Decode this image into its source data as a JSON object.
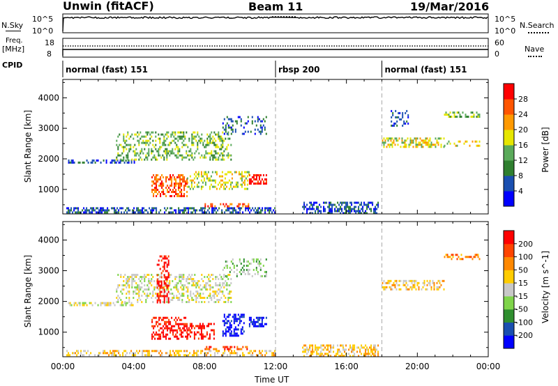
{
  "header": {
    "title": "Unwin (fitACF)",
    "beam": "Beam 11",
    "date": "19/Mar/2016"
  },
  "strip": {
    "nsky_label": "N.Sky",
    "nsky_top": "10^5",
    "nsky_bottom": "10^0",
    "nsearch_label": "N.Search",
    "freq_label": "Freq.",
    "freq_unit": "[MHz]",
    "freq_18": "18",
    "freq_8": "8",
    "nave_label": "Nave",
    "nave_60": "60",
    "nave_0": "0",
    "cpid_label": "CPID"
  },
  "cpid_segments": [
    {
      "label": "normal (fast) 151",
      "start_hour": 0
    },
    {
      "label": "rbsp 200",
      "start_hour": 12
    },
    {
      "label": "normal (fast) 151",
      "start_hour": 18
    }
  ],
  "chart_data": [
    {
      "type": "heatmap",
      "panel": "power",
      "xlabel": "Time UT",
      "ylabel": "Slant Range [km]",
      "x_ticks": [
        "00:00",
        "04:00",
        "08:00",
        "12:00",
        "16:00",
        "20:00",
        "00:00"
      ],
      "xlim_hours": [
        0,
        24
      ],
      "ylim": [
        200,
        4600
      ],
      "y_ticks": [
        1000,
        2000,
        3000,
        4000
      ],
      "colorbar": {
        "label": "Power [dB]",
        "ticks": [
          "4",
          "8",
          "12",
          "16",
          "20",
          "24",
          "28"
        ],
        "colors": [
          "#0000ff",
          "#1a4fb0",
          "#2f7f2f",
          "#5aaa5a",
          "#e6e600",
          "#ff9900",
          "#ff5500",
          "#ff0000"
        ]
      },
      "regions": [
        {
          "t0": 0.2,
          "t1": 12.0,
          "r0": 250,
          "r1": 420,
          "level": 1,
          "density": 0.55
        },
        {
          "t0": 0.3,
          "t1": 4.0,
          "r0": 1850,
          "r1": 1980,
          "level": 1,
          "density": 0.5
        },
        {
          "t0": 3.0,
          "t1": 9.5,
          "r0": 2000,
          "r1": 2900,
          "level": 3,
          "density": 0.35
        },
        {
          "t0": 5.0,
          "t1": 7.0,
          "r0": 800,
          "r1": 1500,
          "level": 6,
          "density": 0.45
        },
        {
          "t0": 7.0,
          "t1": 10.5,
          "r0": 1000,
          "r1": 1600,
          "level": 4,
          "density": 0.35
        },
        {
          "t0": 9.0,
          "t1": 11.5,
          "r0": 2800,
          "r1": 3400,
          "level": 1,
          "density": 0.3
        },
        {
          "t0": 10.5,
          "t1": 11.5,
          "r0": 1200,
          "r1": 1500,
          "level": 7,
          "density": 0.6
        },
        {
          "t0": 8.0,
          "t1": 10.5,
          "r0": 450,
          "r1": 550,
          "level": 6,
          "density": 0.45
        },
        {
          "t0": 13.5,
          "t1": 17.8,
          "r0": 250,
          "r1": 600,
          "level": 1,
          "density": 0.55
        },
        {
          "t0": 18.0,
          "t1": 21.5,
          "r0": 2400,
          "r1": 2700,
          "level": 4,
          "density": 0.45
        },
        {
          "t0": 18.5,
          "t1": 19.5,
          "r0": 3100,
          "r1": 3600,
          "level": 1,
          "density": 0.3
        },
        {
          "t0": 21.5,
          "t1": 23.5,
          "r0": 3350,
          "r1": 3550,
          "level": 3,
          "density": 0.45
        },
        {
          "t0": 21.5,
          "t1": 23.5,
          "r0": 2400,
          "r1": 2600,
          "level": 4,
          "density": 0.25
        }
      ]
    },
    {
      "type": "heatmap",
      "panel": "velocity",
      "xlabel": "Time UT",
      "ylabel": "Slant Range [km]",
      "x_ticks": [
        "00:00",
        "04:00",
        "08:00",
        "12:00",
        "16:00",
        "20:00",
        "00:00"
      ],
      "xlim_hours": [
        0,
        24
      ],
      "ylim": [
        200,
        4600
      ],
      "y_ticks": [
        1000,
        2000,
        3000,
        4000
      ],
      "colorbar": {
        "label": "Velocity [m s^-1]",
        "ticks": [
          "200",
          "100",
          "50",
          "15",
          "-15",
          "-50",
          "-100",
          "-200"
        ],
        "colors": [
          "#0000ff",
          "#1a4fb0",
          "#2f8f2f",
          "#7fd44a",
          "#c8c8c8",
          "#ffcc00",
          "#ff8800",
          "#ff4400",
          "#ff0000"
        ]
      },
      "regions": [
        {
          "t0": 0.2,
          "t1": 12.0,
          "r0": 250,
          "r1": 420,
          "level": 5,
          "density": 0.45
        },
        {
          "t0": 0.3,
          "t1": 4.0,
          "r0": 1850,
          "r1": 1980,
          "level": 4,
          "density": 0.5
        },
        {
          "t0": 3.0,
          "t1": 9.5,
          "r0": 2000,
          "r1": 2900,
          "level": 4,
          "density": 0.35
        },
        {
          "t0": 5.0,
          "t1": 7.0,
          "r0": 800,
          "r1": 1500,
          "level": 8,
          "density": 0.5
        },
        {
          "t0": 5.3,
          "t1": 6.0,
          "r0": 2000,
          "r1": 3500,
          "level": 8,
          "density": 0.45
        },
        {
          "t0": 7.0,
          "t1": 8.5,
          "r0": 800,
          "r1": 1300,
          "level": 8,
          "density": 0.4
        },
        {
          "t0": 9.0,
          "t1": 10.2,
          "r0": 900,
          "r1": 1600,
          "level": 0,
          "density": 0.55
        },
        {
          "t0": 10.5,
          "t1": 11.5,
          "r0": 1200,
          "r1": 1500,
          "level": 0,
          "density": 0.6
        },
        {
          "t0": 9.0,
          "t1": 11.5,
          "r0": 2800,
          "r1": 3400,
          "level": 3,
          "density": 0.3
        },
        {
          "t0": 8.0,
          "t1": 10.5,
          "r0": 450,
          "r1": 550,
          "level": 7,
          "density": 0.45
        },
        {
          "t0": 13.5,
          "t1": 17.8,
          "r0": 250,
          "r1": 600,
          "level": 5,
          "density": 0.5
        },
        {
          "t0": 18.0,
          "t1": 21.5,
          "r0": 2400,
          "r1": 2700,
          "level": 5,
          "density": 0.45
        },
        {
          "t0": 21.5,
          "t1": 23.5,
          "r0": 3350,
          "r1": 3550,
          "level": 6,
          "density": 0.4
        }
      ]
    }
  ]
}
